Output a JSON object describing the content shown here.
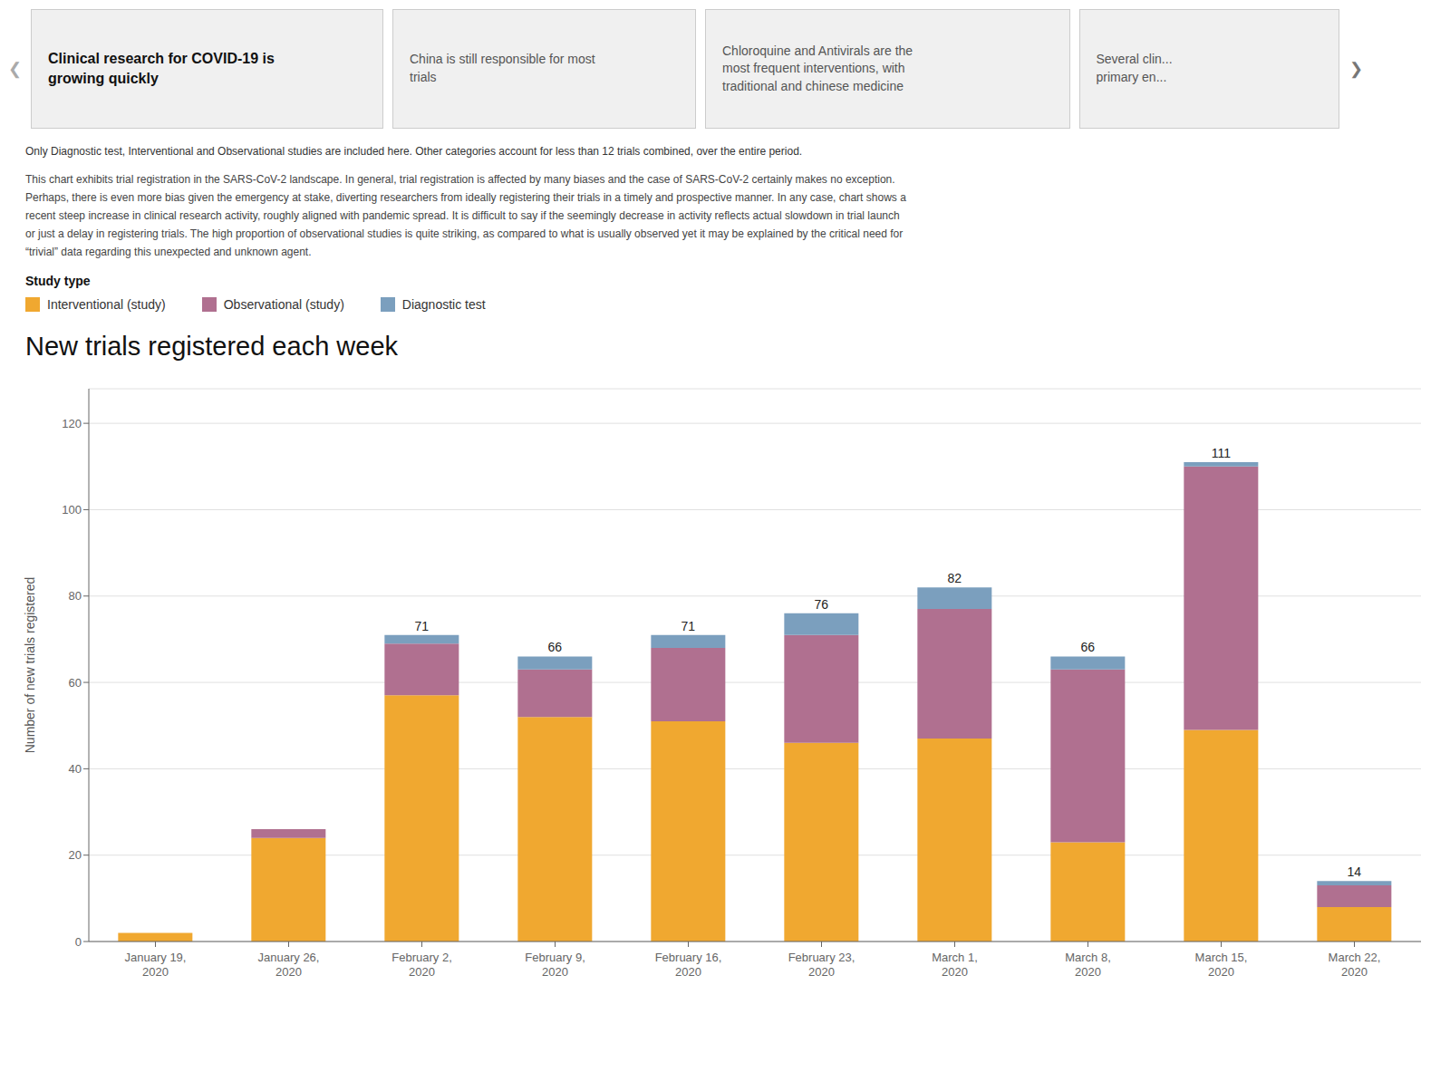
{
  "chart_data": {
    "type": "bar",
    "stacked": true,
    "grid": true,
    "title": "New trials registered each week",
    "ylabel": "Number of new trials registered",
    "categories": [
      "January 19,\n2020",
      "January 26,\n2020",
      "February 2,\n2020",
      "February 9,\n2020",
      "February 16,\n2020",
      "February 23,\n2020",
      "March 1,\n2020",
      "March 8,\n2020",
      "March 15,\n2020",
      "March 22,\n2020"
    ],
    "series": [
      {
        "name": "Interventional (study)",
        "color": "#f0a830",
        "values": [
          2,
          24,
          57,
          52,
          51,
          46,
          47,
          23,
          49,
          8
        ]
      },
      {
        "name": "Observational (study)",
        "color": "#b07090",
        "values": [
          0,
          2,
          12,
          11,
          17,
          25,
          30,
          40,
          61,
          5
        ]
      },
      {
        "name": "Diagnostic test",
        "color": "#7b9fbe",
        "values": [
          0,
          0,
          2,
          3,
          3,
          5,
          5,
          3,
          1,
          1
        ]
      }
    ],
    "totals": [
      2,
      26,
      71,
      66,
      71,
      76,
      82,
      66,
      111,
      14
    ],
    "ylim": [
      0,
      128
    ],
    "yticks": [
      0,
      20,
      40,
      60,
      80,
      100,
      120
    ],
    "legend_title": "Study type",
    "headers": [
      "Clinical research for COVID-19 is\ngrowing quickly",
      "China is still responsible for most\ntrials",
      "Chloroquine and Antivirals are the\nmost frequent interventions, with\ntraditional and chinese medicine",
      "Several clin...\nprimary en..."
    ],
    "nav_arrows": [
      "❮",
      "❯"
    ],
    "note": "Only  Diagnostic test, Interventional and Observational studies are included here.  Other categories account for less than 12 trials combined, over the entire period.",
    "body": [
      "This chart exhibits trial registration in the SARS-CoV-2 landscape. In general, trial registration is affected by many biases and the case of SARS-CoV-2 certainly makes no exception.",
      "Perhaps, there is even more bias given the emergency at stake, diverting researchers from ideally registering their trials in a timely and prospective manner. In any case, chart shows a",
      "recent steep increase in clinical research activity, roughly aligned with pandemic spread. It is difficult to say if the seemingly decrease in activity reflects actual slowdown in trial launch",
      "or just a delay in registering trials. The high proportion of observational studies is quite striking, as compared to what is usually observed yet it may be explained by the critical need for",
      "“trivial” data regarding this unexpected and unknown agent."
    ]
  }
}
